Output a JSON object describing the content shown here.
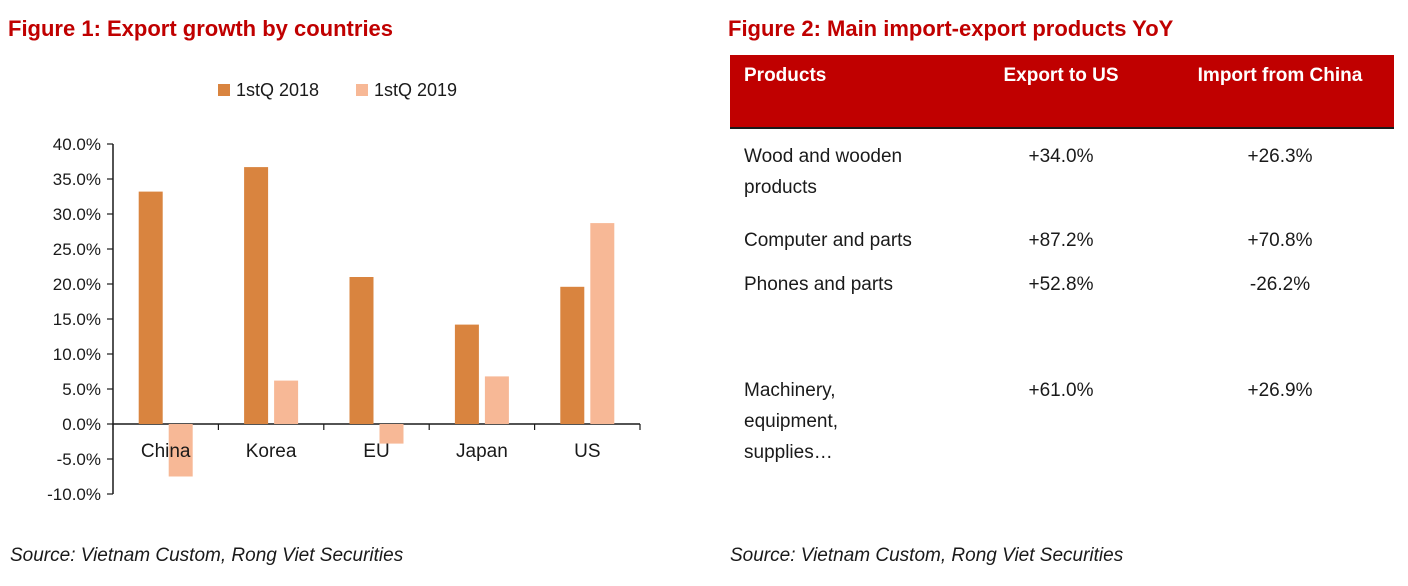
{
  "figure1": {
    "title": "Figure 1:  Export growth by countries",
    "source": "Source: Vietnam Custom, Rong Viet Securities"
  },
  "chart_data": {
    "type": "bar",
    "categories": [
      "China",
      "Korea",
      "EU",
      "Japan",
      "US"
    ],
    "series": [
      {
        "name": "1stQ 2018",
        "color": "#d9843f",
        "values": [
          33.2,
          36.7,
          21.0,
          14.2,
          19.6
        ]
      },
      {
        "name": "1stQ 2019",
        "color": "#f7b896",
        "values": [
          -7.5,
          6.2,
          -2.8,
          6.8,
          28.7
        ]
      }
    ],
    "yticks": [
      "40.0%",
      "35.0%",
      "30.0%",
      "25.0%",
      "20.0%",
      "15.0%",
      "10.0%",
      "5.0%",
      "0.0%",
      "-5.0%",
      "-10.0%"
    ],
    "ylim": [
      -10,
      40
    ],
    "legend": "top",
    "grid": false
  },
  "figure2": {
    "title": "Figure 2: Main import-export products YoY",
    "source": "Source: Vietnam Custom, Rong Viet Securities",
    "headers": {
      "product": "Products",
      "export": "Export to US",
      "import": "Import from China"
    },
    "rows": [
      {
        "product": "Wood and wooden products",
        "export": "+34.0%",
        "import": "+26.3%"
      },
      {
        "product": "Computer and parts",
        "export": "+87.2%",
        "import": "+70.8%"
      },
      {
        "product": "Phones and parts",
        "export": "+52.8%",
        "import": "-26.2%"
      },
      {
        "product": "Machinery, equipment, supplies…",
        "export": "+61.0%",
        "import": "+26.9%"
      }
    ]
  }
}
